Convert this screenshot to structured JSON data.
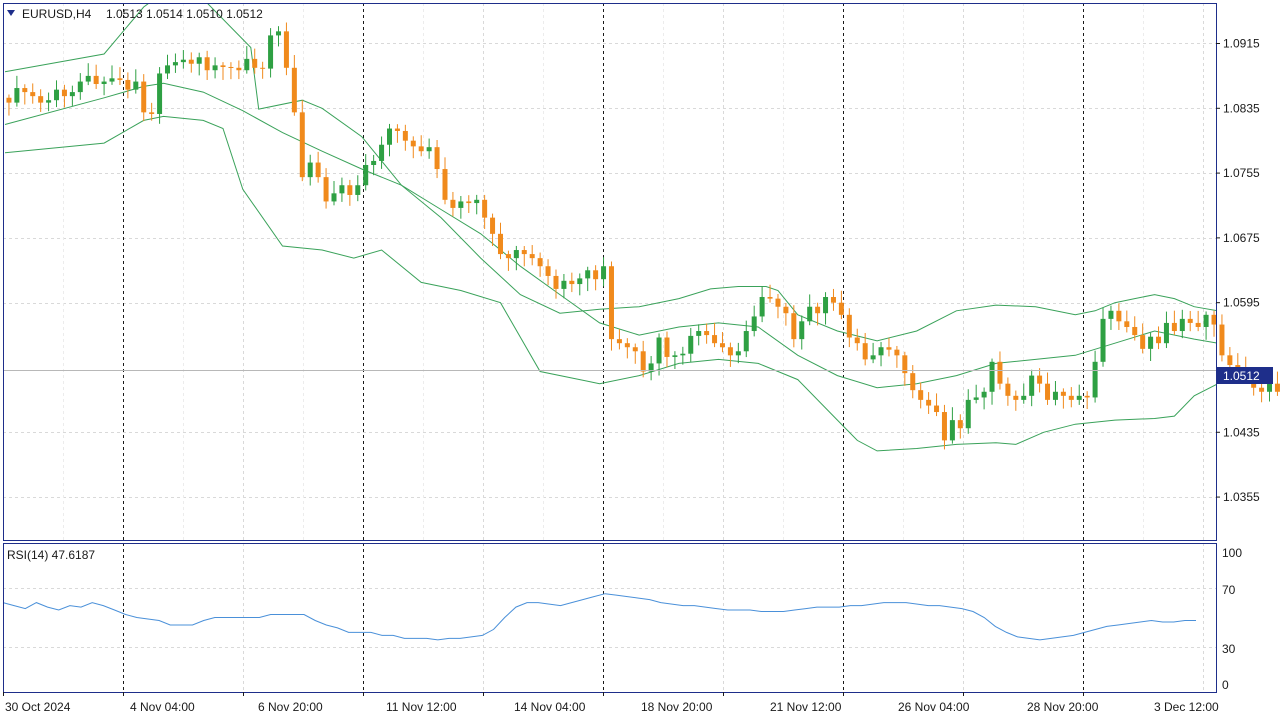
{
  "header": {
    "symbol": "EURUSD,H4",
    "ohlc": "1.0513 1.0514 1.0510 1.0512",
    "price_badge": "1.0512"
  },
  "rsi_panel": {
    "label": "RSI(14) 47.6187",
    "levels": [
      "100",
      "70",
      "30",
      "0"
    ]
  },
  "colors": {
    "bull": "#2ea043",
    "bear": "#f08a1c",
    "band": "#3aa25a",
    "rsi": "#4a90d9",
    "frame": "#1e2e8a",
    "badge": "#1e2e8a",
    "grid": "#d9d9d9"
  },
  "chart_data": [
    {
      "type": "candlestick",
      "title": "EURUSD,H4",
      "ylim": [
        1.0302,
        1.0965
      ],
      "y_ticks": [
        1.0915,
        1.0835,
        1.0755,
        1.0675,
        1.0595,
        1.0435,
        1.0355
      ],
      "y_tick_labels": [
        "1.0915",
        "1.0835",
        "1.0755",
        "1.0675",
        "1.0595",
        "1.0435",
        "1.0355"
      ],
      "x_ticks": [
        "30 Oct 2024",
        "4 Nov 04:00",
        "6 Nov 20:00",
        "11 Nov 12:00",
        "14 Nov 04:00",
        "18 Nov 20:00",
        "21 Nov 12:00",
        "26 Nov 04:00",
        "28 Nov 20:00",
        "3 Dec 12:00"
      ],
      "last_price": 1.0512,
      "grid": true,
      "close_series": [
        1.0842,
        1.086,
        1.0855,
        1.085,
        1.0842,
        1.0845,
        1.0858,
        1.085,
        1.0855,
        1.0868,
        1.0875,
        1.0865,
        1.0868,
        1.0872,
        1.087,
        1.0858,
        1.0868,
        1.083,
        1.0828,
        1.0878,
        1.0888,
        1.0892,
        1.0895,
        1.089,
        1.0898,
        1.0882,
        1.0888,
        1.0886,
        1.0885,
        1.0882,
        1.0896,
        1.0885,
        1.0884,
        1.0925,
        1.093,
        1.0885,
        1.083,
        1.075,
        1.0768,
        1.075,
        1.072,
        1.073,
        1.074,
        1.0728,
        1.074,
        1.0765,
        1.077,
        1.079,
        1.081,
        1.0807,
        1.0795,
        1.0788,
        1.0782,
        1.0787,
        1.076,
        1.0722,
        1.0712,
        1.072,
        1.0718,
        1.0722,
        1.07,
        1.068,
        1.0655,
        1.065,
        1.066,
        1.0655,
        1.065,
        1.064,
        1.0628,
        1.0612,
        1.0622,
        1.0618,
        1.0625,
        1.0635,
        1.0624,
        1.064,
        1.055,
        1.0545,
        1.054,
        1.0535,
        1.051,
        1.052,
        1.0552,
        1.0528,
        1.053,
        1.0532,
        1.0554,
        1.056,
        1.0555,
        1.0545,
        1.054,
        1.053,
        1.0535,
        1.056,
        1.0578,
        1.0602,
        1.06,
        1.059,
        1.0582,
        1.055,
        1.0572,
        1.059,
        1.0582,
        1.0602,
        1.0595,
        1.058,
        1.0552,
        1.0545,
        1.0525,
        1.053,
        1.054,
        1.0537,
        1.053,
        1.0508,
        1.0487,
        1.0475,
        1.0468,
        1.046,
        1.0425,
        1.045,
        1.044,
        1.0475,
        1.0478,
        1.0485,
        1.0522,
        1.0495,
        1.048,
        1.0475,
        1.048,
        1.0505,
        1.0495,
        1.0475,
        1.0485,
        1.048,
        1.0475,
        1.048,
        1.0478,
        1.0522,
        1.0575,
        1.0585,
        1.0572,
        1.0565,
        1.0555,
        1.0538,
        1.0553,
        1.0545,
        1.057,
        1.056,
        1.0575,
        1.057,
        1.0565,
        1.058,
        1.0568,
        1.053,
        1.0518,
        1.0513,
        1.05,
        1.049,
        1.0485,
        1.0495,
        1.0485,
        1.0505,
        1.0525,
        1.0527,
        1.0528,
        1.051,
        1.0508,
        1.0518,
        1.0512
      ],
      "bollinger": {
        "upper": [
          [
            0,
            1.088
          ],
          [
            25,
            1.0902
          ],
          [
            35,
            1.096
          ],
          [
            40,
            1.0978
          ],
          [
            50,
            1.097
          ],
          [
            62,
            1.091
          ],
          [
            64,
            1.0834
          ],
          [
            75,
            1.0845
          ],
          [
            80,
            1.0835
          ],
          [
            90,
            1.08
          ],
          [
            100,
            1.074
          ],
          [
            110,
            1.07
          ],
          [
            120,
            1.065
          ],
          [
            130,
            1.0605
          ],
          [
            140,
            1.0582
          ],
          [
            150,
            1.0587
          ],
          [
            160,
            1.059
          ],
          [
            170,
            1.06
          ],
          [
            178,
            1.0612
          ],
          [
            185,
            1.0615
          ],
          [
            192,
            1.0615
          ],
          [
            195,
            1.061
          ],
          [
            200,
            1.058
          ],
          [
            210,
            1.056
          ],
          [
            220,
            1.0548
          ],
          [
            230,
            1.056
          ],
          [
            240,
            1.0585
          ],
          [
            250,
            1.0592
          ],
          [
            260,
            1.059
          ],
          [
            265,
            1.0585
          ],
          [
            270,
            1.058
          ],
          [
            275,
            1.0585
          ],
          [
            280,
            1.0595
          ],
          [
            285,
            1.06
          ],
          [
            290,
            1.0605
          ],
          [
            295,
            1.06
          ],
          [
            300,
            1.059
          ],
          [
            306,
            1.0585
          ]
        ],
        "middle": [
          [
            0,
            1.0815
          ],
          [
            25,
            1.0848
          ],
          [
            35,
            1.0862
          ],
          [
            40,
            1.0866
          ],
          [
            50,
            1.0855
          ],
          [
            60,
            1.0832
          ],
          [
            70,
            1.0805
          ],
          [
            80,
            1.0782
          ],
          [
            90,
            1.076
          ],
          [
            100,
            1.074
          ],
          [
            110,
            1.071
          ],
          [
            120,
            1.068
          ],
          [
            130,
            1.064
          ],
          [
            140,
            1.0605
          ],
          [
            150,
            1.057
          ],
          [
            160,
            1.0555
          ],
          [
            170,
            1.0565
          ],
          [
            180,
            1.057
          ],
          [
            190,
            1.0565
          ],
          [
            200,
            1.053
          ],
          [
            210,
            1.0505
          ],
          [
            220,
            1.049
          ],
          [
            230,
            1.0495
          ],
          [
            240,
            1.0505
          ],
          [
            250,
            1.052
          ],
          [
            260,
            1.0525
          ],
          [
            270,
            1.053
          ],
          [
            280,
            1.0545
          ],
          [
            290,
            1.056
          ],
          [
            300,
            1.055
          ],
          [
            306,
            1.0545
          ]
        ],
        "lower": [
          [
            0,
            1.078
          ],
          [
            25,
            1.0792
          ],
          [
            35,
            1.082
          ],
          [
            40,
            1.0825
          ],
          [
            50,
            1.082
          ],
          [
            55,
            1.081
          ],
          [
            60,
            1.0735
          ],
          [
            70,
            1.0665
          ],
          [
            80,
            1.066
          ],
          [
            88,
            1.065
          ],
          [
            95,
            1.066
          ],
          [
            105,
            1.062
          ],
          [
            115,
            1.061
          ],
          [
            125,
            1.0595
          ],
          [
            135,
            1.051
          ],
          [
            145,
            1.05
          ],
          [
            150,
            1.0495
          ],
          [
            160,
            1.0505
          ],
          [
            170,
            1.052
          ],
          [
            180,
            1.0525
          ],
          [
            190,
            1.052
          ],
          [
            200,
            1.05
          ],
          [
            210,
            1.045
          ],
          [
            215,
            1.0425
          ],
          [
            220,
            1.0412
          ],
          [
            230,
            1.0415
          ],
          [
            240,
            1.042
          ],
          [
            250,
            1.0422
          ],
          [
            255,
            1.042
          ],
          [
            262,
            1.0435
          ],
          [
            270,
            1.0445
          ],
          [
            280,
            1.045
          ],
          [
            290,
            1.0452
          ],
          [
            295,
            1.0455
          ],
          [
            300,
            1.048
          ],
          [
            306,
            1.0495
          ]
        ]
      }
    },
    {
      "type": "line",
      "title": "RSI(14) 47.6187",
      "ylim": [
        0,
        100
      ],
      "y_ticks": [
        100,
        70,
        30,
        0
      ],
      "grid": true,
      "values": [
        60,
        58,
        56,
        60,
        57,
        55,
        58,
        57,
        60,
        58,
        55,
        52,
        50,
        49,
        48,
        45,
        45,
        45,
        48,
        50,
        50,
        50,
        50,
        50,
        52,
        52,
        52,
        52,
        48,
        45,
        43,
        40,
        40,
        40,
        38,
        38,
        36,
        36,
        36,
        35,
        36,
        36,
        37,
        38,
        42,
        50,
        57,
        60,
        60,
        59,
        58,
        60,
        62,
        64,
        66,
        65,
        64,
        63,
        62,
        60,
        59,
        58,
        58,
        57,
        56,
        55,
        55,
        55,
        54,
        54,
        54,
        55,
        56,
        57,
        57,
        57,
        58,
        58,
        59,
        60,
        60,
        60,
        59,
        58,
        58,
        57,
        56,
        54,
        50,
        44,
        40,
        37,
        36,
        35,
        36,
        37,
        38,
        40,
        42,
        44,
        45,
        46,
        47,
        48,
        47,
        47,
        48,
        48
      ]
    }
  ]
}
